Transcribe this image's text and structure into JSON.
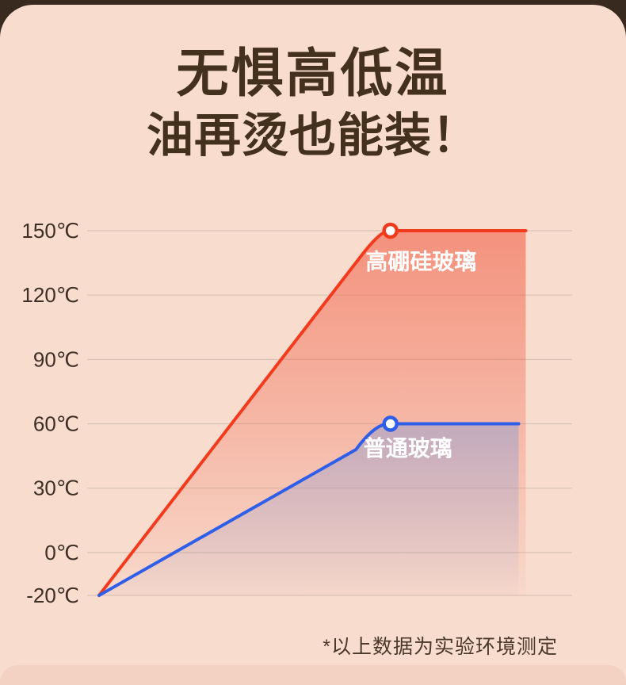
{
  "title": {
    "line1": "无惧高低温",
    "line2": "油再烫也能装！"
  },
  "footnote": "*以上数据为实验环境测定",
  "colors": {
    "background": "#f8ddcf",
    "page_behind": "#382a1f",
    "title": "#43301d",
    "grid": "#d9c3b4",
    "tick": "#3d2f24",
    "series_red": "#f23a1d",
    "series_blue": "#2f5fe8",
    "footer_strip": "#f4d2c3",
    "label_text": "#ffffff"
  },
  "chart_data": {
    "type": "line",
    "title": "无惧高低温 油再烫也能装！",
    "xlabel": "",
    "ylabel": "",
    "y_ticks": [
      150,
      120,
      90,
      60,
      30,
      0,
      -20
    ],
    "y_tick_suffix": "℃",
    "ylim": [
      -20,
      150
    ],
    "grid": "horizontal gridlines on",
    "legend_position": "inline labels under each line",
    "annotation": "*以上数据为实验环境测定",
    "series": [
      {
        "name": "高硼硅玻璃",
        "color": "#f23a1d",
        "fill": "#f0543a",
        "start_temp": -20,
        "plateau_temp": 150,
        "rise": [
          [
            0,
            -20
          ],
          [
            0.555,
            138
          ]
        ],
        "ctrl": [
          0.597,
          150
        ],
        "plateau": [
          [
            0.615,
            150
          ],
          [
            0.905,
            150
          ]
        ],
        "marker": [
          0.618,
          150
        ],
        "label_pos": [
          0.683,
          132
        ]
      },
      {
        "name": "普通玻璃",
        "color": "#2f5fe8",
        "fill": "#98a0d0",
        "start_temp": -20,
        "plateau_temp": 60,
        "rise": [
          [
            0,
            -20
          ],
          [
            0.545,
            48
          ]
        ],
        "ctrl": [
          0.585,
          60
        ],
        "plateau": [
          [
            0.615,
            60
          ],
          [
            0.89,
            60
          ]
        ],
        "marker": [
          0.618,
          60
        ],
        "label_pos": [
          0.655,
          45
        ]
      }
    ]
  }
}
